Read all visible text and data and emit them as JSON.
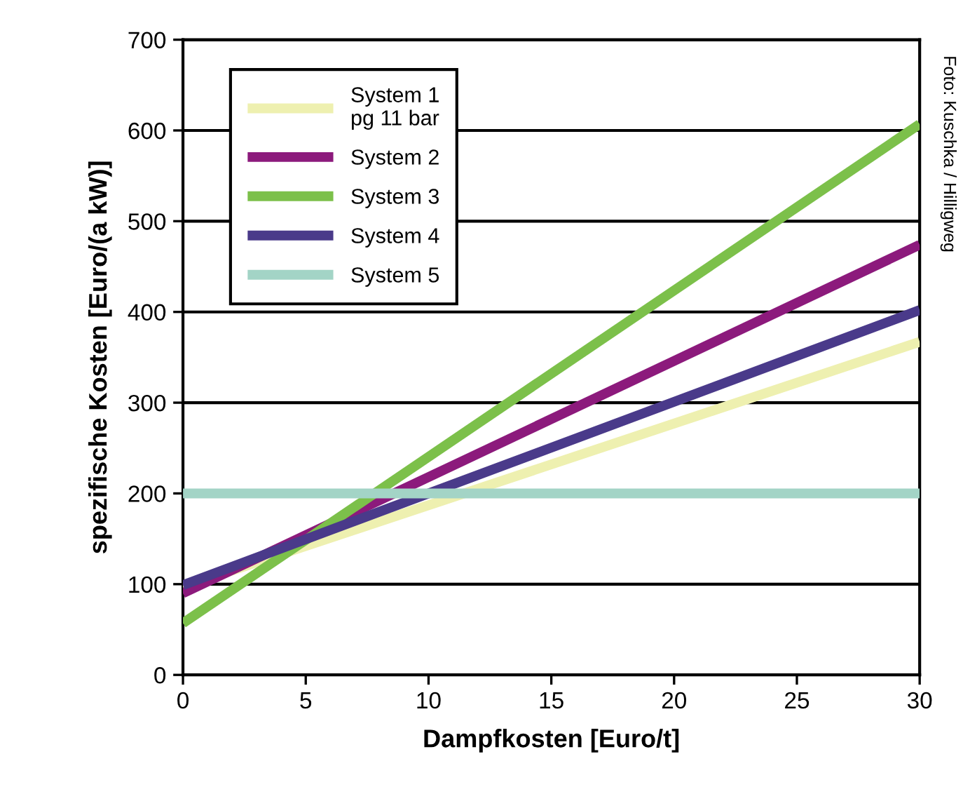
{
  "chart_data": {
    "type": "line",
    "xlabel": "Dampfkosten [Euro/t]",
    "ylabel": "spezifische Kosten [Euro/(a kW)]",
    "x": [
      0,
      30
    ],
    "series": [
      {
        "name": "System 1\npg 11 bar",
        "color": "#eef0b0",
        "values": [
          97,
          367
        ]
      },
      {
        "name": "System 2",
        "color": "#8c1a7c",
        "values": [
          90,
          474
        ]
      },
      {
        "name": "System 3",
        "color": "#7cc04a",
        "values": [
          57,
          607
        ]
      },
      {
        "name": "System 4",
        "color": "#4a3a8a",
        "values": [
          99,
          402
        ]
      },
      {
        "name": "System 5",
        "color": "#a3d4c6",
        "values": [
          200,
          200
        ]
      }
    ],
    "xlim": [
      0,
      30
    ],
    "xticks": [
      0,
      5,
      10,
      15,
      20,
      25,
      30
    ],
    "ylim": [
      0,
      700
    ],
    "yticks": [
      0,
      100,
      200,
      300,
      400,
      500,
      600,
      700
    ],
    "grid": "y",
    "legend": "top left",
    "marker": "none",
    "line_style": "solid",
    "annotations": [
      "Foto: Kuschka / Hilligweg"
    ]
  }
}
